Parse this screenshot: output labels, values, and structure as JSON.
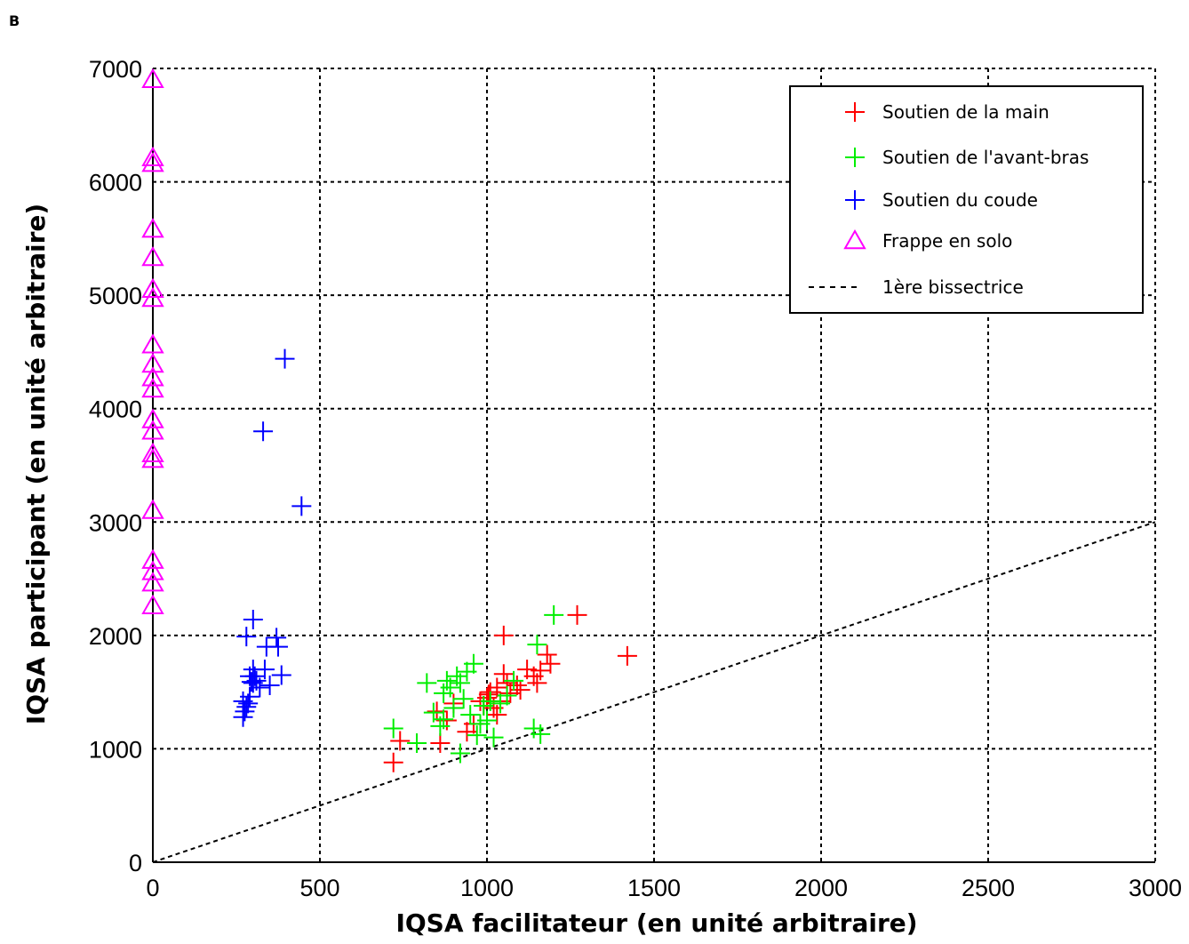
{
  "panel_label": "B",
  "chart_data": {
    "type": "scatter",
    "title": "",
    "xlabel": "IQSA  facilitateur  (en unité arbitraire)",
    "ylabel": "IQSA participant (en unité arbitraire)",
    "xlim": [
      0,
      3000
    ],
    "ylim": [
      0,
      7000
    ],
    "xticks": [
      0,
      500,
      1000,
      1500,
      2000,
      2500,
      3000
    ],
    "yticks": [
      0,
      1000,
      2000,
      3000,
      4000,
      5000,
      6000,
      7000
    ],
    "xtick_labels": [
      "0",
      "500",
      "1000",
      "1500",
      "2000",
      "2500",
      "3000"
    ],
    "ytick_labels": [
      "0",
      "1000",
      "2000",
      "3000",
      "4000",
      "5000",
      "6000",
      "7000"
    ],
    "grid": true,
    "grid_style": "dotted",
    "legend_position": "top-right",
    "series": [
      {
        "name": "Soutien de la main",
        "marker": "plus",
        "color": "#ff0000",
        "points": [
          [
            720,
            880
          ],
          [
            740,
            1070
          ],
          [
            860,
            1050
          ],
          [
            850,
            1330
          ],
          [
            880,
            1250
          ],
          [
            900,
            1400
          ],
          [
            940,
            1150
          ],
          [
            960,
            1220
          ],
          [
            980,
            1420
          ],
          [
            990,
            1380
          ],
          [
            1000,
            1450
          ],
          [
            1010,
            1500
          ],
          [
            1020,
            1360
          ],
          [
            1030,
            1540
          ],
          [
            1040,
            1420
          ],
          [
            1050,
            1660
          ],
          [
            1060,
            1580
          ],
          [
            1070,
            1490
          ],
          [
            1090,
            1560
          ],
          [
            1100,
            1520
          ],
          [
            1120,
            1700
          ],
          [
            1140,
            1640
          ],
          [
            1150,
            1580
          ],
          [
            1160,
            1690
          ],
          [
            1180,
            1830
          ],
          [
            1190,
            1750
          ],
          [
            1050,
            2000
          ],
          [
            1270,
            2180
          ],
          [
            1420,
            1820
          ],
          [
            1005,
            1480
          ],
          [
            1030,
            1300
          ]
        ]
      },
      {
        "name": "Soutien de l'avant-bras",
        "marker": "plus",
        "color": "#00ee00",
        "points": [
          [
            720,
            1180
          ],
          [
            790,
            1050
          ],
          [
            820,
            1580
          ],
          [
            840,
            1320
          ],
          [
            860,
            1200
          ],
          [
            870,
            1490
          ],
          [
            880,
            1600
          ],
          [
            890,
            1540
          ],
          [
            900,
            1360
          ],
          [
            910,
            1640
          ],
          [
            920,
            1580
          ],
          [
            930,
            1440
          ],
          [
            940,
            1680
          ],
          [
            950,
            1300
          ],
          [
            960,
            1750
          ],
          [
            970,
            1120
          ],
          [
            980,
            1220
          ],
          [
            990,
            1380
          ],
          [
            1000,
            1250
          ],
          [
            1010,
            1420
          ],
          [
            1020,
            1100
          ],
          [
            1040,
            1400
          ],
          [
            1060,
            1470
          ],
          [
            1080,
            1600
          ],
          [
            1140,
            1180
          ],
          [
            1150,
            1920
          ],
          [
            1160,
            1130
          ],
          [
            1200,
            2180
          ],
          [
            920,
            960
          ],
          [
            870,
            1260
          ]
        ]
      },
      {
        "name": "Soutien du coude",
        "marker": "plus",
        "color": "#0000ff",
        "points": [
          [
            270,
            1280
          ],
          [
            270,
            1420
          ],
          [
            275,
            1330
          ],
          [
            280,
            1370
          ],
          [
            285,
            1400
          ],
          [
            290,
            1460
          ],
          [
            290,
            1640
          ],
          [
            295,
            1590
          ],
          [
            300,
            1700
          ],
          [
            300,
            1580
          ],
          [
            305,
            1640
          ],
          [
            310,
            1600
          ],
          [
            320,
            1540
          ],
          [
            335,
            1700
          ],
          [
            340,
            1900
          ],
          [
            350,
            1560
          ],
          [
            370,
            1980
          ],
          [
            375,
            1900
          ],
          [
            385,
            1650
          ],
          [
            280,
            1990
          ],
          [
            300,
            2140
          ],
          [
            330,
            3800
          ],
          [
            395,
            4440
          ],
          [
            445,
            3140
          ]
        ]
      },
      {
        "name": "Frappe en solo",
        "marker": "triangle",
        "color": "#ff00ff",
        "points": [
          [
            0,
            6900
          ],
          [
            0,
            6210
          ],
          [
            0,
            6160
          ],
          [
            0,
            5580
          ],
          [
            0,
            5330
          ],
          [
            0,
            5050
          ],
          [
            0,
            4970
          ],
          [
            0,
            4560
          ],
          [
            0,
            4390
          ],
          [
            0,
            4270
          ],
          [
            0,
            4170
          ],
          [
            0,
            3900
          ],
          [
            0,
            3800
          ],
          [
            0,
            3600
          ],
          [
            0,
            3550
          ],
          [
            0,
            3100
          ],
          [
            0,
            2660
          ],
          [
            0,
            2560
          ],
          [
            0,
            2460
          ],
          [
            0,
            2260
          ]
        ]
      },
      {
        "name": "1ère bissectrice",
        "marker": "dashed-line",
        "color": "#000000",
        "points": [
          [
            0,
            0
          ],
          [
            3000,
            3000
          ]
        ]
      }
    ]
  }
}
